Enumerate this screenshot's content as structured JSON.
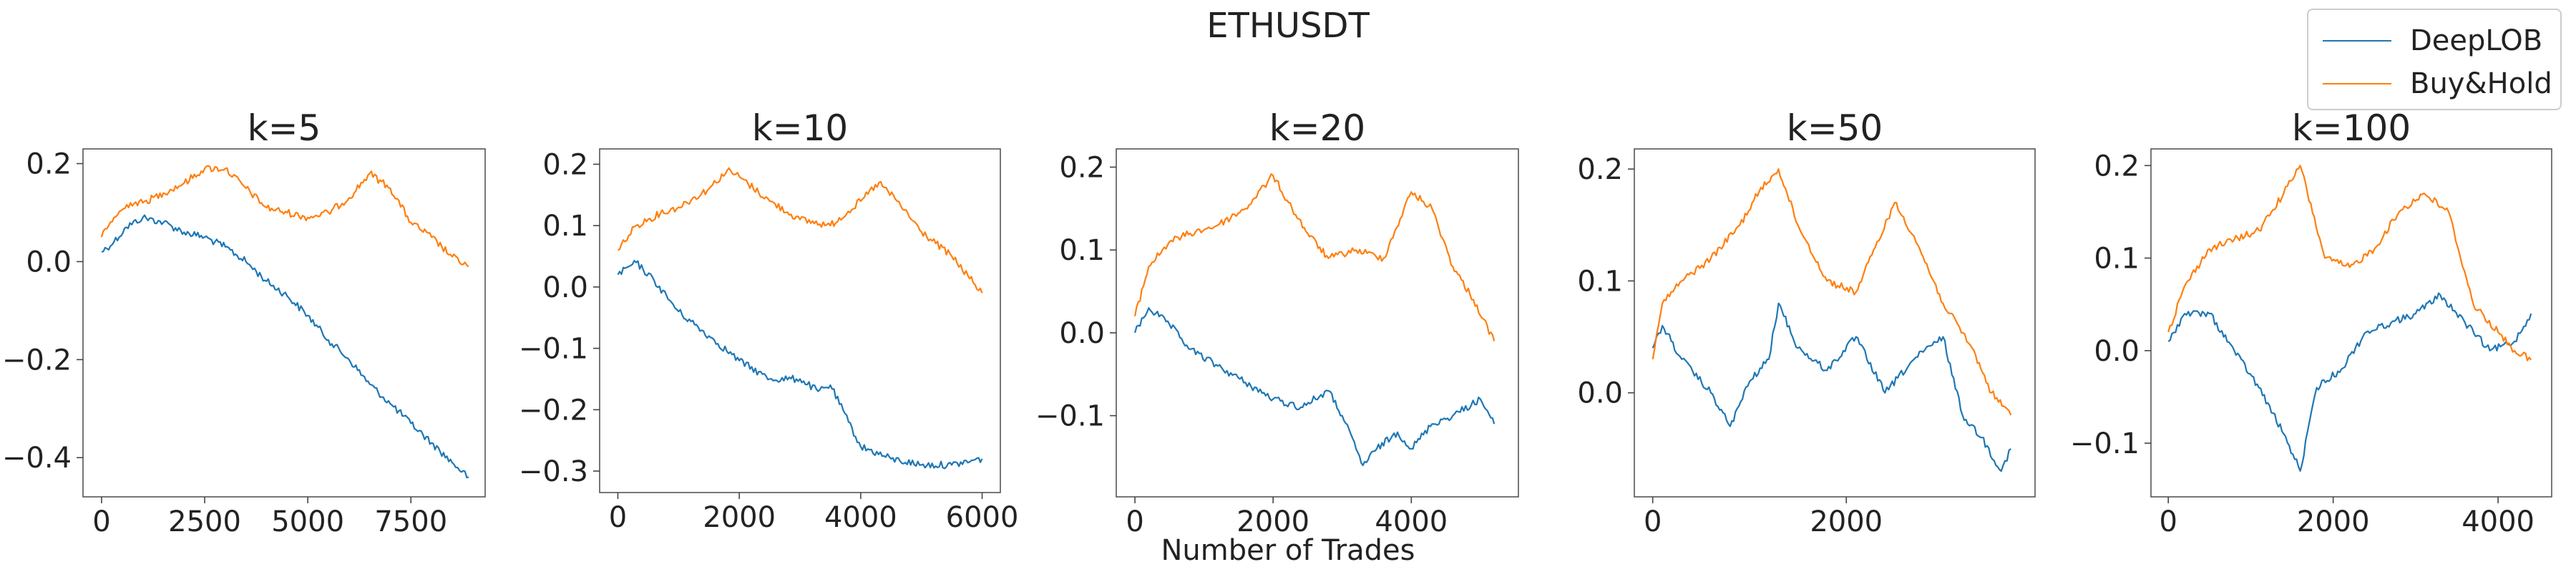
{
  "figure": {
    "title": "ETHUSDT",
    "xlabel": "Number of Trades",
    "colors": {
      "DeepLOB": "#1f77b4",
      "Buy&Hold": "#ff7f0e"
    }
  },
  "legend": {
    "placement": "top-right",
    "entries": [
      {
        "name": "DeepLOB",
        "color": "#1f77b4"
      },
      {
        "name": "Buy&Hold",
        "color": "#ff7f0e"
      }
    ]
  },
  "chart_data": [
    {
      "type": "line",
      "title": "k=5",
      "xlabel": "",
      "ylabel": "",
      "xlim": [
        -450,
        9300
      ],
      "ylim": [
        -0.48,
        0.23
      ],
      "xticks": [
        0,
        2500,
        5000,
        7500
      ],
      "xtick_labels": [
        "0",
        "2500",
        "5000",
        "7500"
      ],
      "yticks": [
        0.2,
        0.0,
        -0.2,
        -0.4
      ],
      "ytick_labels": [
        "0.2",
        "0.0",
        "−0.2",
        "−0.4"
      ],
      "series": [
        {
          "name": "DeepLOB",
          "x": [
            0,
            300,
            600,
            1000,
            1500,
            2000,
            2500,
            3000,
            3500,
            4000,
            4500,
            5000,
            5500,
            6000,
            6500,
            7000,
            7500,
            8000,
            8500,
            8900
          ],
          "y": [
            0.02,
            0.04,
            0.07,
            0.09,
            0.08,
            0.06,
            0.05,
            0.03,
            0.0,
            -0.04,
            -0.07,
            -0.11,
            -0.16,
            -0.2,
            -0.25,
            -0.29,
            -0.33,
            -0.37,
            -0.41,
            -0.44
          ]
        },
        {
          "name": "Buy&Hold",
          "x": [
            0,
            300,
            700,
            1000,
            1500,
            2000,
            2500,
            3000,
            3500,
            4000,
            4500,
            5000,
            5500,
            6000,
            6500,
            7000,
            7500,
            8000,
            8500,
            8900
          ],
          "y": [
            0.05,
            0.09,
            0.12,
            0.12,
            0.14,
            0.16,
            0.19,
            0.19,
            0.15,
            0.11,
            0.1,
            0.09,
            0.1,
            0.13,
            0.18,
            0.15,
            0.08,
            0.05,
            0.01,
            -0.01
          ]
        }
      ]
    },
    {
      "type": "line",
      "title": "k=10",
      "xlabel": "",
      "ylabel": "",
      "xlim": [
        -300,
        6300
      ],
      "ylim": [
        -0.335,
        0.225
      ],
      "xticks": [
        0,
        2000,
        4000,
        6000
      ],
      "xtick_labels": [
        "0",
        "2000",
        "4000",
        "6000"
      ],
      "yticks": [
        0.2,
        0.1,
        0.0,
        -0.1,
        -0.2,
        -0.3
      ],
      "ytick_labels": [
        "0.2",
        "0.1",
        "0.0",
        "−0.1",
        "−0.2",
        "−0.3"
      ],
      "series": [
        {
          "name": "DeepLOB",
          "x": [
            0,
            300,
            600,
            1000,
            1500,
            2000,
            2500,
            3000,
            3300,
            3500,
            3800,
            4000,
            4500,
            5000,
            5500,
            6000
          ],
          "y": [
            0.02,
            0.04,
            0.01,
            -0.04,
            -0.08,
            -0.12,
            -0.15,
            -0.15,
            -0.17,
            -0.16,
            -0.22,
            -0.26,
            -0.28,
            -0.29,
            -0.29,
            -0.28
          ]
        },
        {
          "name": "Buy&Hold",
          "x": [
            0,
            300,
            700,
            1000,
            1500,
            1800,
            2000,
            2500,
            3000,
            3500,
            4000,
            4300,
            4600,
            5000,
            5500,
            6000
          ],
          "y": [
            0.06,
            0.1,
            0.12,
            0.13,
            0.16,
            0.19,
            0.18,
            0.14,
            0.11,
            0.1,
            0.14,
            0.17,
            0.14,
            0.09,
            0.05,
            -0.01
          ]
        }
      ]
    },
    {
      "type": "line",
      "title": "k=20",
      "xlabel": "",
      "ylabel": "",
      "xlim": [
        -270,
        5550
      ],
      "ylim": [
        -0.198,
        0.222
      ],
      "xticks": [
        0,
        2000,
        4000
      ],
      "xtick_labels": [
        "0",
        "2000",
        "4000"
      ],
      "yticks": [
        0.2,
        0.1,
        0.0,
        -0.1
      ],
      "ytick_labels": [
        "0.2",
        "0.1",
        "0.0",
        "−0.1"
      ],
      "series": [
        {
          "name": "DeepLOB",
          "x": [
            0,
            200,
            500,
            800,
            1200,
            1600,
            2000,
            2400,
            2800,
            3000,
            3300,
            3500,
            3800,
            4000,
            4300,
            4600,
            5000,
            5200
          ],
          "y": [
            0.0,
            0.03,
            0.01,
            -0.02,
            -0.04,
            -0.06,
            -0.08,
            -0.09,
            -0.07,
            -0.1,
            -0.16,
            -0.14,
            -0.12,
            -0.14,
            -0.11,
            -0.1,
            -0.08,
            -0.11
          ]
        },
        {
          "name": "Buy&Hold",
          "x": [
            0,
            200,
            500,
            800,
            1200,
            1600,
            2000,
            2200,
            2500,
            2800,
            3200,
            3600,
            4000,
            4300,
            4600,
            4900,
            5200
          ],
          "y": [
            0.02,
            0.08,
            0.11,
            0.12,
            0.13,
            0.15,
            0.19,
            0.16,
            0.12,
            0.09,
            0.1,
            0.09,
            0.17,
            0.15,
            0.08,
            0.04,
            -0.01
          ]
        }
      ]
    },
    {
      "type": "line",
      "title": "k=50",
      "xlabel": "",
      "ylabel": "",
      "xlim": [
        -190,
        3950
      ],
      "ylim": [
        -0.093,
        0.218
      ],
      "xticks": [
        0,
        2000
      ],
      "xtick_labels": [
        "0",
        "2000"
      ],
      "yticks": [
        0.2,
        0.1,
        0.0
      ],
      "ytick_labels": [
        "0.2",
        "0.1",
        "0.0"
      ],
      "series": [
        {
          "name": "DeepLOB",
          "x": [
            0,
            100,
            300,
            600,
            800,
            1000,
            1200,
            1300,
            1500,
            1800,
            2100,
            2400,
            2700,
            3000,
            3200,
            3400,
            3600,
            3700
          ],
          "y": [
            0.04,
            0.06,
            0.03,
            0.0,
            -0.03,
            0.01,
            0.03,
            0.08,
            0.04,
            0.02,
            0.05,
            0.0,
            0.03,
            0.05,
            -0.02,
            -0.04,
            -0.07,
            -0.05
          ]
        },
        {
          "name": "Buy&Hold",
          "x": [
            0,
            100,
            300,
            600,
            900,
            1100,
            1300,
            1500,
            1800,
            2100,
            2300,
            2500,
            2700,
            3000,
            3300,
            3500,
            3700
          ],
          "y": [
            0.03,
            0.08,
            0.1,
            0.12,
            0.15,
            0.18,
            0.2,
            0.15,
            0.1,
            0.09,
            0.13,
            0.17,
            0.14,
            0.08,
            0.04,
            0.0,
            -0.02
          ]
        }
      ]
    },
    {
      "type": "line",
      "title": "k=100",
      "xlabel": "",
      "ylabel": "",
      "xlim": [
        -210,
        4650
      ],
      "ylim": [
        -0.158,
        0.218
      ],
      "xticks": [
        0,
        2000,
        4000
      ],
      "xtick_labels": [
        "0",
        "2000",
        "4000"
      ],
      "yticks": [
        0.2,
        0.1,
        0.0,
        -0.1
      ],
      "ytick_labels": [
        "0.2",
        "0.1",
        "0.0",
        "−0.1"
      ],
      "series": [
        {
          "name": "DeepLOB",
          "x": [
            0,
            200,
            500,
            800,
            1100,
            1400,
            1600,
            1800,
            2100,
            2400,
            2700,
            3000,
            3300,
            3600,
            3900,
            4200,
            4400
          ],
          "y": [
            0.01,
            0.04,
            0.04,
            0.0,
            -0.04,
            -0.09,
            -0.13,
            -0.04,
            -0.02,
            0.02,
            0.03,
            0.04,
            0.06,
            0.03,
            0.0,
            0.01,
            0.04
          ]
        },
        {
          "name": "Buy&Hold",
          "x": [
            0,
            200,
            500,
            800,
            1100,
            1400,
            1600,
            1900,
            2200,
            2500,
            2800,
            3100,
            3400,
            3700,
            4000,
            4200,
            4400
          ],
          "y": [
            0.02,
            0.07,
            0.11,
            0.12,
            0.13,
            0.17,
            0.2,
            0.1,
            0.09,
            0.11,
            0.15,
            0.17,
            0.15,
            0.05,
            0.02,
            0.0,
            -0.01
          ]
        }
      ]
    }
  ]
}
